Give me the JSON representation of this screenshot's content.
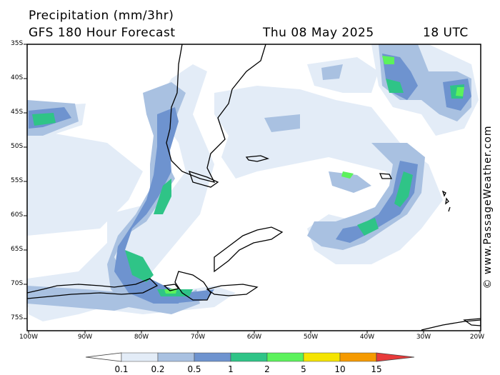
{
  "header": {
    "title": "Precipitation (mm/3hr)",
    "subtitle": "GFS 180 Hour Forecast",
    "date": "Thu 08 May 2025",
    "time": "18 UTC"
  },
  "axes": {
    "lat_labels": [
      "35S",
      "40S",
      "45S",
      "50S",
      "55S",
      "60S",
      "65S",
      "70S",
      "75S"
    ],
    "lon_labels": [
      "100W",
      "90W",
      "80W",
      "70W",
      "60W",
      "50W",
      "40W",
      "30W",
      "20W"
    ]
  },
  "legend": {
    "labels": [
      "0.1",
      "0.2",
      "0.5",
      "1",
      "2",
      "5",
      "10",
      "15"
    ],
    "colors": [
      "#ffffff",
      "#e3ecf7",
      "#a9c1e1",
      "#6e93cf",
      "#2fc487",
      "#5cf25c",
      "#f5e400",
      "#f59a00",
      "#e83a3a"
    ]
  },
  "credit": "© www.PassageWeather.com"
}
